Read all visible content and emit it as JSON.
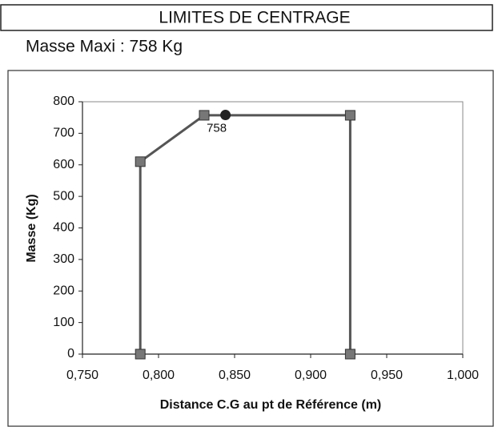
{
  "chart_data": {
    "type": "scatter",
    "title": "LIMITES DE CENTRAGE",
    "subtitle": "Masse Maxi : 758 Kg",
    "x_label": "Distance C.G au pt de Référence (m)",
    "y_label": "Masse (Kg)",
    "series": [
      {
        "color": "#555555",
        "marker": "square",
        "line": true,
        "x": [
          0.788,
          0.788,
          0.83,
          0.926,
          0.926
        ],
        "values": [
          0,
          610,
          757,
          757,
          0
        ]
      },
      {
        "color": "#222222",
        "marker": "circle",
        "line": false,
        "x": [
          0.844
        ],
        "values": [
          758
        ]
      }
    ],
    "xlim": [
      0.75,
      1.0
    ],
    "xticks": [
      {
        "value": 0.75,
        "label": "0,750"
      },
      {
        "value": 0.8,
        "label": "0,800"
      },
      {
        "value": 0.85,
        "label": "0,850"
      },
      {
        "value": 0.9,
        "label": "0,900"
      },
      {
        "value": 0.95,
        "label": "0,950"
      },
      {
        "value": 1.0,
        "label": "1,000"
      }
    ],
    "ylim": [
      0,
      800
    ],
    "yticks": [
      0,
      100,
      200,
      300,
      400,
      500,
      600,
      700,
      800
    ],
    "grid": false
  }
}
